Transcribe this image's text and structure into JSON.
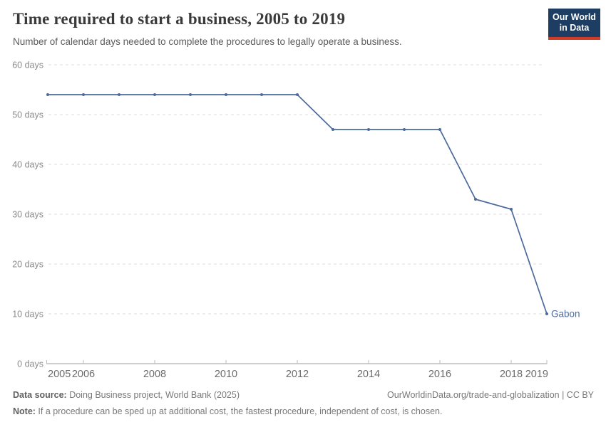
{
  "header": {
    "title": "Time required to start a business, 2005 to 2019",
    "subtitle": "Number of calendar days needed to complete the procedures to legally operate a business.",
    "logo": {
      "line1": "Our World",
      "line2": "in Data"
    }
  },
  "chart_data": {
    "type": "line",
    "title": "Time required to start a business, 2005 to 2019",
    "entity": "Gabon",
    "x": [
      2005,
      2006,
      2007,
      2008,
      2009,
      2010,
      2011,
      2012,
      2013,
      2014,
      2015,
      2016,
      2017,
      2018,
      2019
    ],
    "series": [
      {
        "name": "Gabon",
        "color": "#4c6a9c",
        "values": [
          54,
          54,
          54,
          54,
          54,
          54,
          54,
          54,
          47,
          47,
          47,
          47,
          33,
          31,
          10
        ]
      }
    ],
    "xlabel": "",
    "ylabel": "days",
    "xlim": [
      2005,
      2019
    ],
    "ylim": [
      0,
      60
    ],
    "y_ticks": [
      {
        "value": 0,
        "label": "0 days"
      },
      {
        "value": 10,
        "label": "10 days"
      },
      {
        "value": 20,
        "label": "20 days"
      },
      {
        "value": 30,
        "label": "30 days"
      },
      {
        "value": 40,
        "label": "40 days"
      },
      {
        "value": 50,
        "label": "50 days"
      },
      {
        "value": 60,
        "label": "60 days"
      }
    ],
    "x_tick_labels": [
      "2005",
      "2006",
      "2008",
      "2010",
      "2012",
      "2014",
      "2016",
      "2018",
      "2019"
    ],
    "grid": "horizontal-dashed",
    "legend_position": "end-of-line-label"
  },
  "footer": {
    "datasource_label": "Data source:",
    "datasource_text": " Doing Business project, World Bank (2025)",
    "link_text": "OurWorldinData.org/trade-and-globalization | CC BY",
    "note_label": "Note:",
    "note_text": " If a procedure can be sped up at additional cost, the fastest procedure, independent of cost, is chosen."
  },
  "colors": {
    "accent_blue": "#4c6a9c",
    "logo_navy": "#1d3d63",
    "logo_red": "#d13b27",
    "grid": "#dedede",
    "axis": "#9e9e9e",
    "tick_mark": "#bbbbbb",
    "ytick_text": "#8b8b8b",
    "xtick_text": "#6b6b6b",
    "title_text": "#3a3a3a",
    "subtitle_text": "#5b5b5b",
    "footer_text": "#787878"
  }
}
